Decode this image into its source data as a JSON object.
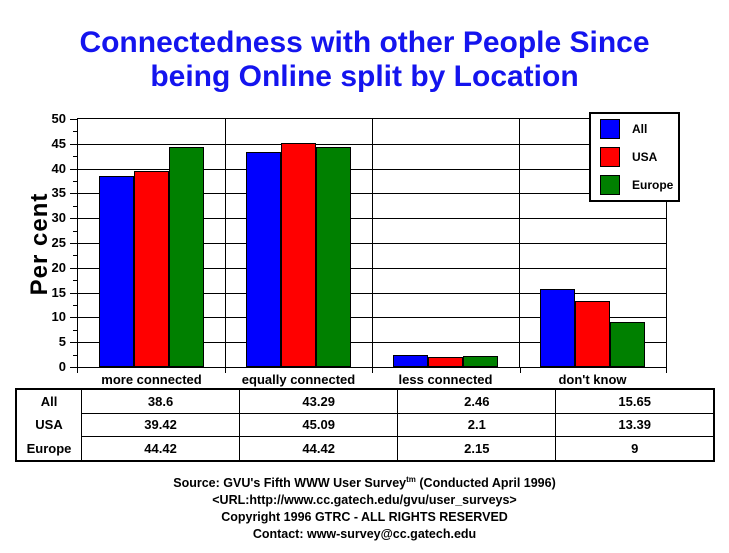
{
  "title": {
    "line1": "Connectedness with other People Since",
    "line2": "being Online split by Location",
    "color": "#1414ee"
  },
  "chart_data": {
    "type": "bar",
    "title": "Connectedness with other People Since being Online split by Location",
    "categories": [
      "more connected",
      "equally connected",
      "less connected",
      "don't know"
    ],
    "series": [
      {
        "name": "All",
        "color": "#0000ff",
        "values": [
          38.6,
          43.29,
          2.46,
          15.65
        ]
      },
      {
        "name": "USA",
        "color": "#ff0000",
        "values": [
          39.42,
          45.09,
          2.1,
          13.39
        ]
      },
      {
        "name": "Europe",
        "color": "#008000",
        "values": [
          44.42,
          44.42,
          2.15,
          9
        ]
      }
    ],
    "xlabel": "",
    "ylabel": "Per cent",
    "ylim": [
      0,
      50
    ],
    "yticks": [
      0,
      5,
      10,
      15,
      20,
      25,
      30,
      35,
      40,
      45,
      50
    ],
    "minor_tick_step": 2.5,
    "grid": true,
    "legend_position": "top-right"
  },
  "footer": {
    "source_prefix": "Source: GVU's Fifth WWW User Survey",
    "source_sup": "tm",
    "source_suffix": " (Conducted April 1996)",
    "url_line": "<URL:http://www.cc.gatech.edu/gvu/user_surveys>",
    "copyright_line": "Copyright 1996 GTRC -  ALL RIGHTS RESERVED",
    "contact_line": "Contact: www-survey@cc.gatech.edu"
  }
}
